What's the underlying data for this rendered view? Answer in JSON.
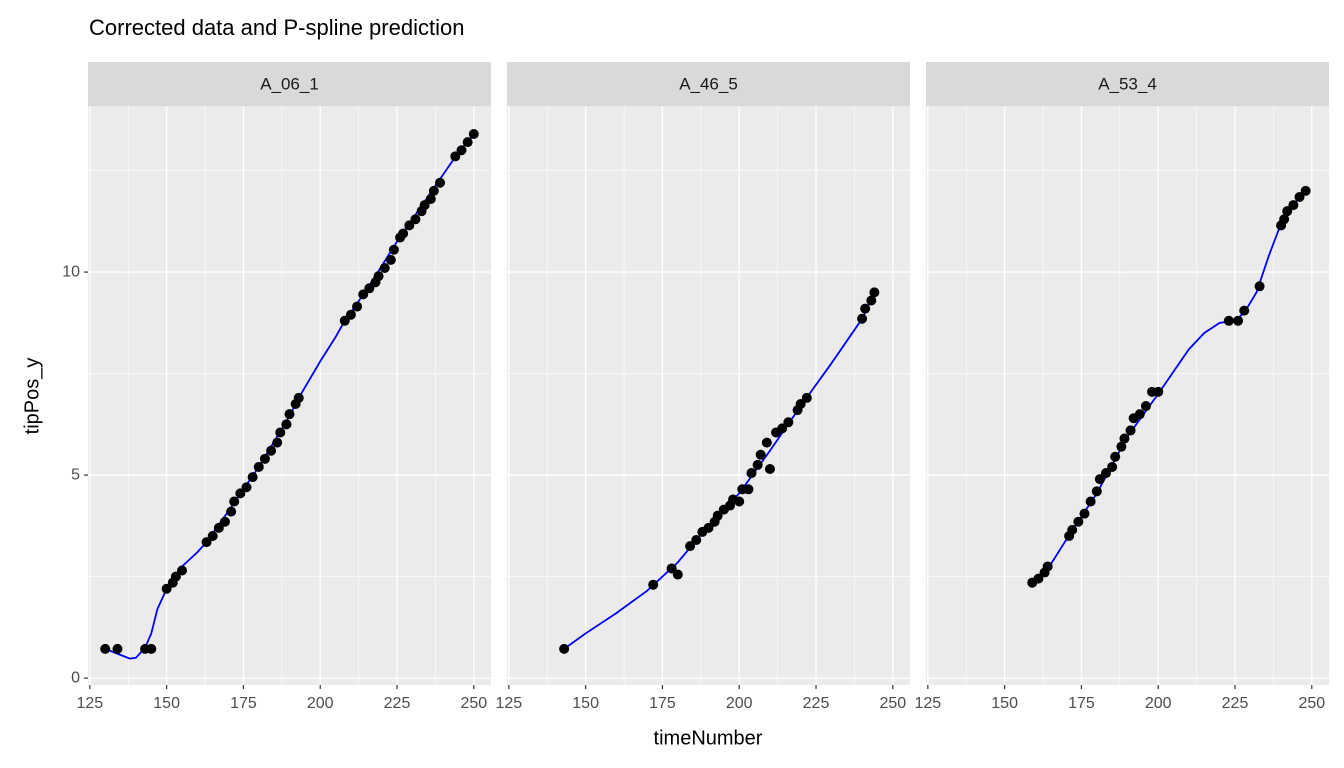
{
  "chart_data": {
    "type": "scatter",
    "title": "Corrected data and P-spline prediction",
    "x_label": "timeNumber",
    "y_label": "tipPos_y",
    "xlim": [
      124.4,
      255.6
    ],
    "xticks": [
      125,
      150,
      175,
      200,
      225,
      250
    ],
    "x_minor_grid": [
      137.5,
      162.5,
      187.5,
      212.5,
      237.5
    ],
    "ylim": [
      -0.17,
      14.09
    ],
    "yticks": [
      0,
      5,
      10
    ],
    "y_minor_grid": [
      2.5,
      7.5,
      12.5
    ],
    "point_color": "#000000",
    "line_color": "#0000ff",
    "grid": true,
    "panels": [
      {
        "name": "A_06_1",
        "x": [
          130,
          134,
          143,
          145,
          150,
          152,
          153,
          155,
          163,
          165,
          167,
          169,
          171,
          172,
          174,
          176,
          178,
          180,
          182,
          184,
          186,
          187,
          189,
          190,
          192,
          193,
          208,
          210,
          212,
          214,
          216,
          218,
          219,
          221,
          223,
          224,
          226,
          227,
          229,
          231,
          233,
          234,
          236,
          237,
          239,
          244,
          246,
          248,
          250
        ],
        "y": [
          0.72,
          0.72,
          0.72,
          0.72,
          2.2,
          2.35,
          2.5,
          2.65,
          3.35,
          3.5,
          3.7,
          3.85,
          4.1,
          4.35,
          4.55,
          4.7,
          4.95,
          5.2,
          5.4,
          5.6,
          5.8,
          6.05,
          6.25,
          6.5,
          6.75,
          6.9,
          8.8,
          8.95,
          9.15,
          9.45,
          9.6,
          9.75,
          9.9,
          10.1,
          10.3,
          10.55,
          10.85,
          10.95,
          11.15,
          11.3,
          11.5,
          11.65,
          11.8,
          12.0,
          12.2,
          12.85,
          13.0,
          13.2,
          13.4
        ],
        "fit_x": [
          130,
          134,
          138,
          140,
          143,
          145,
          147,
          150,
          155,
          160,
          163,
          170,
          180,
          190,
          193,
          200,
          205,
          208,
          215,
          225,
          235,
          240,
          245,
          250
        ],
        "fit_y": [
          0.72,
          0.6,
          0.48,
          0.5,
          0.75,
          1.1,
          1.7,
          2.2,
          2.75,
          3.1,
          3.35,
          4.1,
          5.2,
          6.45,
          6.9,
          7.8,
          8.4,
          8.8,
          9.55,
          10.75,
          11.85,
          12.4,
          12.95,
          13.4
        ]
      },
      {
        "name": "A_46_5",
        "x": [
          143,
          172,
          178,
          180,
          184,
          186,
          188,
          190,
          192,
          193,
          195,
          197,
          198,
          200,
          201,
          203,
          204,
          206,
          207,
          209,
          210,
          212,
          214,
          216,
          219,
          220,
          222,
          240,
          241,
          243,
          244
        ],
        "y": [
          0.72,
          2.3,
          2.7,
          2.55,
          3.25,
          3.4,
          3.6,
          3.7,
          3.85,
          4.0,
          4.15,
          4.25,
          4.4,
          4.35,
          4.65,
          4.65,
          5.05,
          5.25,
          5.5,
          5.8,
          5.15,
          6.05,
          6.15,
          6.3,
          6.6,
          6.75,
          6.9,
          8.85,
          9.1,
          9.3,
          9.5
        ],
        "fit_x": [
          143,
          150,
          160,
          170,
          180,
          190,
          200,
          210,
          220,
          230,
          240,
          244
        ],
        "fit_y": [
          0.72,
          1.1,
          1.6,
          2.15,
          2.85,
          3.75,
          4.55,
          5.6,
          6.7,
          7.75,
          8.85,
          9.5
        ]
      },
      {
        "name": "A_53_4",
        "x": [
          159,
          161,
          163,
          164,
          171,
          172,
          174,
          176,
          178,
          180,
          181,
          183,
          185,
          186,
          188,
          189,
          191,
          192,
          194,
          196,
          198,
          200,
          223,
          226,
          228,
          233,
          240,
          241,
          242,
          244,
          246,
          248
        ],
        "y": [
          2.35,
          2.45,
          2.6,
          2.75,
          3.5,
          3.65,
          3.85,
          4.05,
          4.35,
          4.6,
          4.9,
          5.05,
          5.2,
          5.45,
          5.7,
          5.9,
          6.1,
          6.4,
          6.5,
          6.7,
          7.05,
          7.05,
          8.8,
          8.8,
          9.05,
          9.65,
          11.15,
          11.3,
          11.5,
          11.65,
          11.85,
          12.0
        ],
        "fit_x": [
          159,
          162,
          165,
          170,
          180,
          190,
          200,
          205,
          210,
          215,
          220,
          225,
          228,
          232,
          236,
          239,
          242,
          248
        ],
        "fit_y": [
          2.35,
          2.5,
          2.8,
          3.4,
          4.55,
          5.95,
          7.0,
          7.55,
          8.1,
          8.5,
          8.75,
          8.8,
          9.0,
          9.5,
          10.4,
          11.0,
          11.5,
          12.0
        ]
      }
    ]
  }
}
